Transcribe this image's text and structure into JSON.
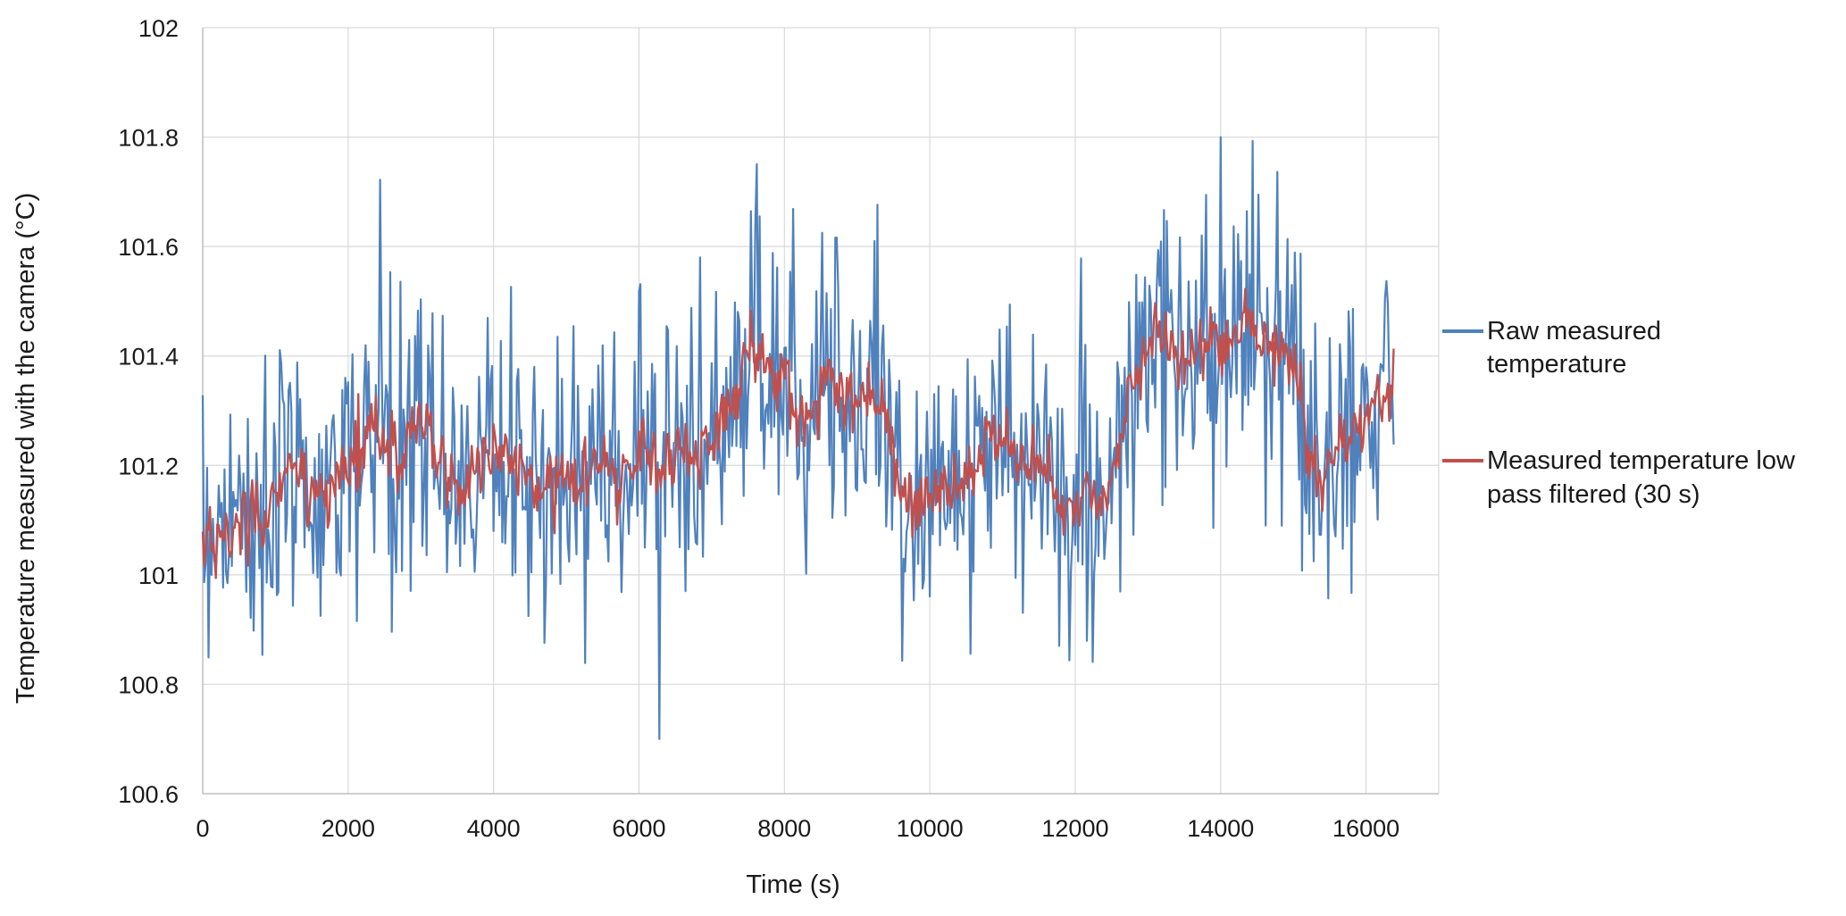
{
  "chart_data": {
    "type": "line",
    "title": "",
    "xlabel": "Time (s)",
    "ylabel": "Temperature measured with the camera (°C)",
    "xlim": [
      0,
      17000
    ],
    "ylim": [
      100.6,
      102
    ],
    "x_ticks": [
      "0",
      "2000",
      "4000",
      "6000",
      "8000",
      "10000",
      "12000",
      "14000",
      "16000"
    ],
    "y_ticks": [
      "100.6",
      "100.8",
      "101",
      "101.2",
      "101.4",
      "101.6",
      "101.8",
      "102"
    ],
    "grid": true,
    "legend_position": "right",
    "sample_interval_s": 20,
    "series": [
      {
        "name": "Raw measured temperature",
        "legend_lines": [
          "Raw measured",
          "temperature"
        ],
        "color": "#4f81bd",
        "x_end": 16380,
        "mean_anchors": [
          [
            0,
            101.1
          ],
          [
            1000,
            101.13
          ],
          [
            1900,
            101.18
          ],
          [
            2000,
            101.23
          ],
          [
            3000,
            101.22
          ],
          [
            4000,
            101.2
          ],
          [
            5000,
            101.18
          ],
          [
            6000,
            101.22
          ],
          [
            7300,
            101.25
          ],
          [
            7500,
            101.38
          ],
          [
            8600,
            101.38
          ],
          [
            9300,
            101.3
          ],
          [
            9500,
            101.15
          ],
          [
            10500,
            101.2
          ],
          [
            11500,
            101.2
          ],
          [
            12500,
            101.12
          ],
          [
            12800,
            101.32
          ],
          [
            13000,
            101.43
          ],
          [
            14000,
            101.4
          ],
          [
            15000,
            101.4
          ],
          [
            15200,
            101.2
          ],
          [
            16380,
            101.35
          ]
        ],
        "spread_sd": 0.14,
        "min": 100.7,
        "max": 101.8
      },
      {
        "name": "Measured temperature low pass filtered (30 s)",
        "legend_lines": [
          "Measured temperature low",
          "pass filtered (30 s)"
        ],
        "color": "#c0504d",
        "x_end": 16380,
        "filter_window_s": 30
      }
    ]
  }
}
